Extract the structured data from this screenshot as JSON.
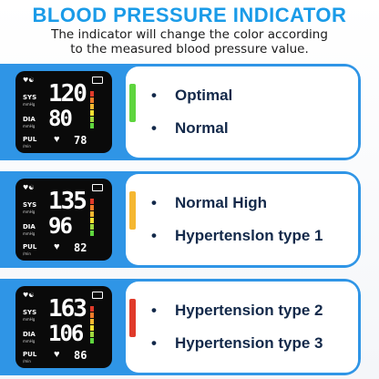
{
  "header": {
    "title": "BLOOD PRESSURE INDICATOR",
    "subtitle_line1": "The indicator will change the color according",
    "subtitle_line2": "to the measured blood pressure value."
  },
  "labels": {
    "sys": "SYS",
    "sys_unit": "mmHg",
    "dia": "DIA",
    "dia_unit": "mmHg",
    "pul": "PUL",
    "pul_unit": "/min"
  },
  "cards": [
    {
      "display": {
        "sys": "120",
        "dia": "80",
        "pul": "78"
      },
      "indicator_color": "#5ed53e",
      "items": [
        "Optimal",
        "Normal"
      ]
    },
    {
      "display": {
        "sys": "135",
        "dia": "96",
        "pul": "82"
      },
      "indicator_color": "#f5b731",
      "items": [
        "Normal High",
        "Hypertenslon type 1"
      ]
    },
    {
      "display": {
        "sys": "163",
        "dia": "106",
        "pul": "86"
      },
      "indicator_color": "#e03a2a",
      "items": [
        "Hypertension type 2",
        "Hypertension type 3"
      ]
    }
  ],
  "scale_colors": [
    "#e03a2a",
    "#f07b2a",
    "#f5b731",
    "#f5e031",
    "#9fd63e",
    "#5ed53e"
  ]
}
